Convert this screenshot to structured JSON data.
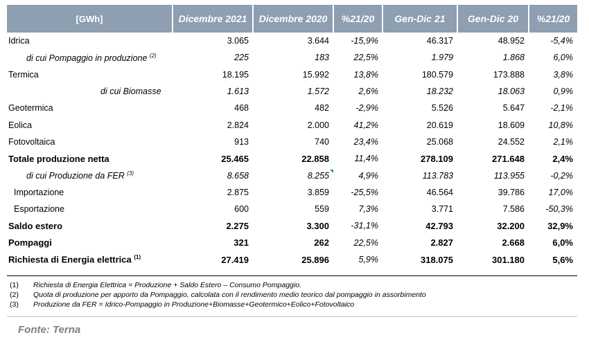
{
  "header": {
    "unit": "[GWh]",
    "col1": "Dicembre 2021",
    "col2": "Dicembre 2020",
    "col3": "%21/20",
    "col4": "Gen-Dic 21",
    "col5": "Gen-Dic 20",
    "col6": "%21/20"
  },
  "rows": [
    {
      "label": "Idrica",
      "note": "",
      "v": [
        "3.065",
        "3.644",
        "-15,9%",
        "46.317",
        "48.952",
        "-5,4%"
      ]
    },
    {
      "label": "di cui Pompaggio in produzione",
      "note": "(2)",
      "v": [
        "225",
        "183",
        "22,5%",
        "1.979",
        "1.868",
        "6,0%"
      ]
    },
    {
      "label": "Termica",
      "note": "",
      "v": [
        "18.195",
        "15.992",
        "13,8%",
        "180.579",
        "173.888",
        "3,8%"
      ]
    },
    {
      "label": "di cui Biomasse",
      "note": "",
      "v": [
        "1.613",
        "1.572",
        "2,6%",
        "18.232",
        "18.063",
        "0,9%"
      ]
    },
    {
      "label": "Geotermica",
      "note": "",
      "v": [
        "468",
        "482",
        "-2,9%",
        "5.526",
        "5.647",
        "-2,1%"
      ]
    },
    {
      "label": "Eolica",
      "note": "",
      "v": [
        "2.824",
        "2.000",
        "41,2%",
        "20.619",
        "18.609",
        "10,8%"
      ]
    },
    {
      "label": "Fotovoltaica",
      "note": "",
      "v": [
        "913",
        "740",
        "23,4%",
        "25.068",
        "24.552",
        "2,1%"
      ]
    },
    {
      "label": "Totale produzione netta",
      "note": "",
      "v": [
        "25.465",
        "22.858",
        "11,4%",
        "278.109",
        "271.648",
        "2,4%"
      ]
    },
    {
      "label": "di cui Produzione da FER",
      "note": "(3)",
      "v": [
        "8.658",
        "8.255",
        "4,9%",
        "113.783",
        "113.955",
        "-0,2%"
      ]
    },
    {
      "label": "Importazione",
      "note": "",
      "v": [
        "2.875",
        "3.859",
        "-25,5%",
        "46.564",
        "39.786",
        "17,0%"
      ]
    },
    {
      "label": "Esportazione",
      "note": "",
      "v": [
        "600",
        "559",
        "7,3%",
        "3.771",
        "7.586",
        "-50,3%"
      ]
    },
    {
      "label": "Saldo estero",
      "note": "",
      "v": [
        "2.275",
        "3.300",
        "-31,1%",
        "42.793",
        "32.200",
        "32,9%"
      ]
    },
    {
      "label": "Pompaggi",
      "note": "",
      "v": [
        "321",
        "262",
        "22,5%",
        "2.827",
        "2.668",
        "6,0%"
      ]
    },
    {
      "label": "Richiesta di Energia elettrica",
      "note": "(1)",
      "v": [
        "27.419",
        "25.896",
        "5,9%",
        "318.075",
        "301.180",
        "5,6%"
      ]
    }
  ],
  "notes": [
    {
      "num": "(1)",
      "text": "Richiesta di Energia Elettrica = Produzione  + Saldo Estero  – Consumo  Pompaggio."
    },
    {
      "num": "(2)",
      "text": "Quota di produzione  per apporto  da Pompaggio,  calcolata  con il rendimento  medio  teorico  dal pompaggio   in assorbimento"
    },
    {
      "num": "(3)",
      "text": "Produzione  da FER = Idrico-Pompaggio   in Produzione+Biomasse+Geotermico+Eolico+Fotovoltaico"
    }
  ],
  "source": "Fonte: Terna"
}
